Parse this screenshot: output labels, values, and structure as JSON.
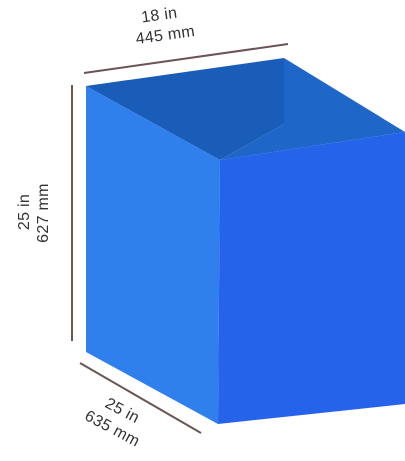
{
  "colors": {
    "front_face": "#2563EB",
    "left_face": "#2F80ED",
    "inner_back": "#1A5DB8",
    "inner_right": "#1E66C8",
    "dimension_line": "#6B5553",
    "dimension_text": "#333333"
  },
  "dimensions": {
    "top": {
      "inches": "18 in",
      "millimeters": "445 mm"
    },
    "height": {
      "inches": "25 in",
      "millimeters": "627 mm"
    },
    "depth": {
      "inches": "25 in",
      "millimeters": "635 mm"
    }
  }
}
